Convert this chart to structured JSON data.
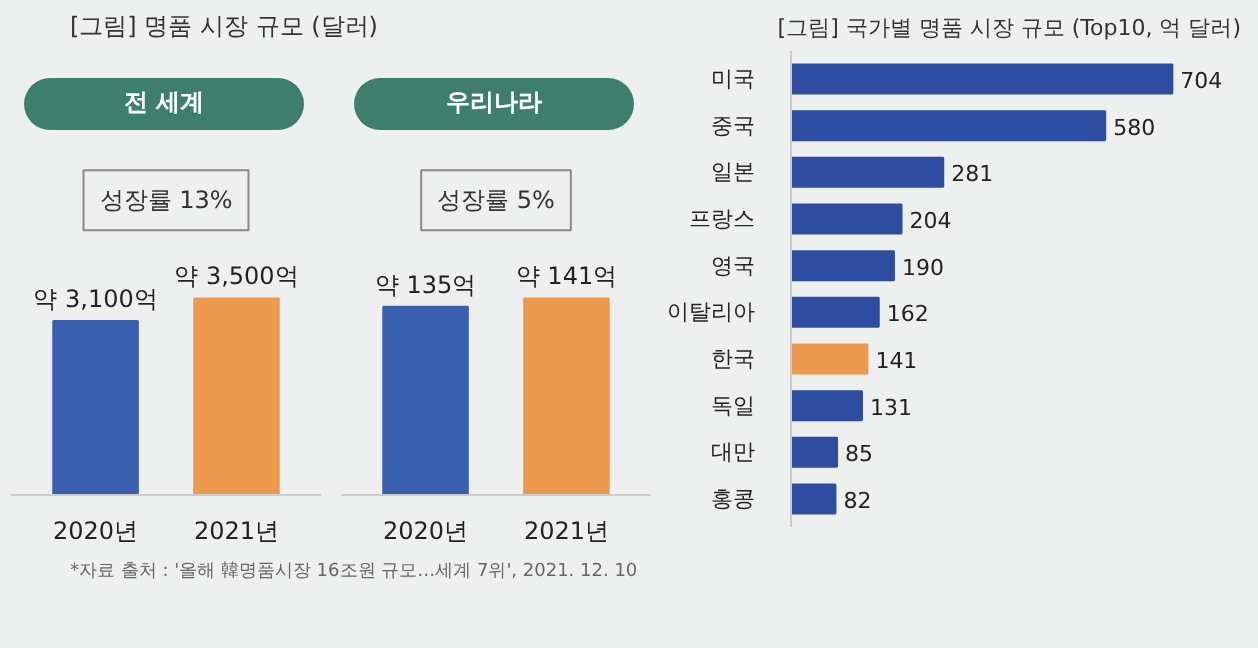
{
  "chart_data": [
    {
      "type": "bar",
      "title": "[그림] 명품 시장 규모 (달러)",
      "subtitle": "전 세계",
      "categories": [
        "2020년",
        "2021년"
      ],
      "values": [
        3100,
        3500
      ],
      "colors": [
        "#3a5fae",
        "#ec9a50"
      ],
      "value_labels": [
        "약 3,100억",
        "약 3,500억"
      ],
      "annotations": [
        "성장률 13%"
      ]
    },
    {
      "type": "bar",
      "subtitle": "우리나라",
      "categories": [
        "2020년",
        "2021년"
      ],
      "values": [
        135,
        141
      ],
      "colors": [
        "#3a5fae",
        "#ec9a50"
      ],
      "value_labels": [
        "약 135억",
        "약 141억"
      ],
      "annotations": [
        "성장률 5%"
      ]
    },
    {
      "type": "bar",
      "orientation": "horizontal",
      "title": "[그림] 국가별 명품 시장 규모 (Top10, 억 달러)",
      "categories": [
        "미국",
        "중국",
        "일본",
        "프랑스",
        "영국",
        "이탈리아",
        "한국",
        "독일",
        "대만",
        "홍콩"
      ],
      "values": [
        704,
        580,
        281,
        204,
        190,
        162,
        141,
        131,
        85,
        82
      ],
      "colors": [
        "#2f4da0",
        "#2f4da0",
        "#2f4da0",
        "#2f4da0",
        "#2f4da0",
        "#2f4da0",
        "#ec9a50",
        "#2f4da0",
        "#2f4da0",
        "#2f4da0"
      ],
      "data_labels": true,
      "annotations": [
        "*자료 출처 : '올해 韓명품시장 16조원 규모…세계 7위', 2021. 12. 10"
      ]
    }
  ]
}
